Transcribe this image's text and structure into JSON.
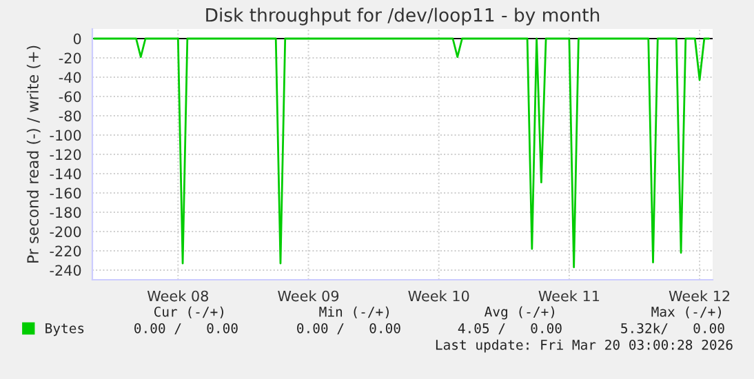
{
  "chart_data": {
    "type": "line",
    "title": "Disk throughput for /dev/loop11 - by month",
    "ylabel": "Pr second read (-) / write (+)",
    "categories": [
      null,
      null,
      null,
      null,
      null,
      null,
      null,
      null,
      null,
      null,
      null,
      null,
      null,
      null,
      null,
      null,
      null,
      null,
      "Week 08",
      null,
      null,
      null,
      null,
      null,
      null,
      null,
      null,
      null,
      null,
      null,
      null,
      null,
      null,
      null,
      null,
      null,
      null,
      null,
      null,
      null,
      null,
      null,
      null,
      null,
      null,
      null,
      "Week 09",
      null,
      null,
      null,
      null,
      null,
      null,
      null,
      null,
      null,
      null,
      null,
      null,
      null,
      null,
      null,
      null,
      null,
      null,
      null,
      null,
      null,
      null,
      null,
      null,
      null,
      null,
      null,
      "Week 10",
      null,
      null,
      null,
      null,
      null,
      null,
      null,
      null,
      null,
      null,
      null,
      null,
      null,
      null,
      null,
      null,
      null,
      null,
      null,
      null,
      null,
      null,
      null,
      null,
      null,
      null,
      null,
      "Week 11",
      null,
      null,
      null,
      null,
      null,
      null,
      null,
      null,
      null,
      null,
      null,
      null,
      null,
      null,
      null,
      null,
      null,
      null,
      null,
      null,
      null,
      null,
      null,
      null,
      null,
      null,
      null,
      "Week 12",
      null,
      null
    ],
    "series": [
      {
        "name": "Bytes",
        "color": "#00cc00",
        "values": [
          0,
          0,
          0,
          0,
          0,
          0,
          0,
          0,
          0,
          0,
          -19,
          0,
          0,
          0,
          0,
          0,
          0,
          0,
          0,
          -233,
          0,
          0,
          0,
          0,
          0,
          0,
          0,
          0,
          0,
          0,
          0,
          0,
          0,
          0,
          0,
          0,
          0,
          0,
          0,
          0,
          -233,
          0,
          0,
          0,
          0,
          0,
          0,
          0,
          0,
          0,
          0,
          0,
          0,
          0,
          0,
          0,
          0,
          0,
          0,
          0,
          0,
          0,
          0,
          0,
          0,
          0,
          0,
          0,
          0,
          0,
          0,
          0,
          0,
          0,
          0,
          0,
          0,
          0,
          -19,
          0,
          0,
          0,
          0,
          0,
          0,
          0,
          0,
          0,
          0,
          0,
          0,
          0,
          0,
          0,
          -218,
          0,
          -149,
          0,
          0,
          0,
          0,
          0,
          0,
          -237,
          0,
          0,
          0,
          0,
          0,
          0,
          0,
          0,
          0,
          0,
          0,
          0,
          0,
          0,
          0,
          0,
          -232,
          0,
          0,
          0,
          0,
          0,
          -222,
          0,
          0,
          0,
          -43,
          0,
          0
        ]
      }
    ],
    "ylim": [
      -250,
      10
    ],
    "yticks": [
      -240,
      -220,
      -200,
      -180,
      -160,
      -140,
      -120,
      -100,
      -80,
      -60,
      -40,
      -20,
      0
    ],
    "grid": true,
    "legend": "bottom",
    "annotations": [
      "Cur (-/+)",
      "Min (-/+)",
      "Avg (-/+)",
      "Max (-/+)",
      "0.00 /   0.00",
      "0.00 /   0.00",
      "4.05 /   0.00",
      "5.32k/   0.00",
      "Last update: Fri Mar 20 03:00:28 2026"
    ]
  }
}
